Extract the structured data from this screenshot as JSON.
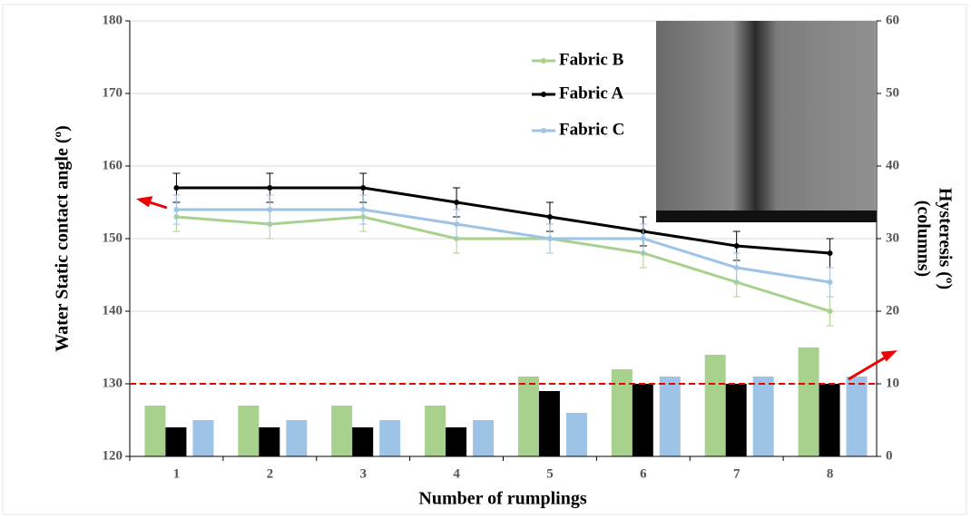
{
  "chart_data": {
    "type": "line-bar",
    "ylabel": "Water Static contact angle (º)",
    "y2label": [
      "Hysteresis (º)",
      "(columns)"
    ],
    "xlabel": "Number of rumplings",
    "categories": [
      "1",
      "2",
      "3",
      "4",
      "5",
      "6",
      "7",
      "8"
    ],
    "ylim": [
      120,
      180
    ],
    "yticks": [
      120,
      130,
      140,
      150,
      160,
      170,
      180
    ],
    "y2lim": [
      0,
      60
    ],
    "y2ticks": [
      0,
      10,
      20,
      30,
      40,
      50,
      60
    ],
    "grid": true,
    "reference_line": 130,
    "series": [
      {
        "name": "Fabric B",
        "color": "#a9d18e",
        "values": [
          153,
          152,
          153,
          150,
          150,
          148,
          144,
          140
        ],
        "errors": [
          2,
          2,
          2,
          2,
          2,
          2,
          2,
          2
        ]
      },
      {
        "name": "Fabric A",
        "color": "#000000",
        "values": [
          157,
          157,
          157,
          155,
          153,
          151,
          149,
          148
        ],
        "errors": [
          2,
          2,
          2,
          2,
          2,
          2,
          2,
          2
        ]
      },
      {
        "name": "Fabric C",
        "color": "#9dc3e6",
        "values": [
          154,
          154,
          154,
          152,
          150,
          150,
          146,
          144
        ],
        "errors": [
          2,
          2,
          2,
          2,
          2,
          2,
          2,
          2
        ]
      }
    ],
    "bar_series": [
      {
        "color": "#a9d18e",
        "axis": "y2",
        "values": [
          7,
          7,
          7,
          7,
          11,
          12,
          14,
          15
        ]
      },
      {
        "color": "#000000",
        "axis": "y2",
        "values": [
          4,
          4,
          4,
          4,
          9,
          10,
          10,
          10
        ]
      },
      {
        "color": "#9dc3e6",
        "axis": "y2",
        "values": [
          5,
          5,
          5,
          5,
          6,
          11,
          11,
          11
        ]
      }
    ]
  }
}
